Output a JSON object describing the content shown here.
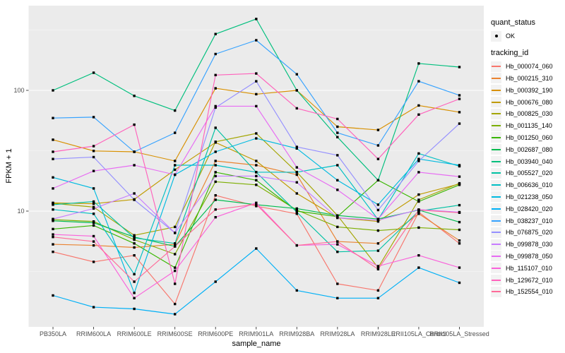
{
  "chart_data": {
    "type": "line",
    "xlabel": "sample_name",
    "ylabel": "FPKM + 1",
    "y_scale": "log10",
    "y_ticks": [
      10,
      100
    ],
    "y_minor_gridlines": [
      3.162,
      31.62,
      316.2
    ],
    "ylim": [
      1.1,
      500
    ],
    "grid": true,
    "legend_position": "right",
    "legend": {
      "quant_status_title": "quant_status",
      "ok_label": "OK",
      "tracking_id_title": "tracking_id"
    },
    "categories": [
      "PB350LA",
      "RRIM600LA",
      "RRIM600LE",
      "RRIM600SE",
      "RRIM600PE",
      "RRIM901LA",
      "RRIM928BA",
      "RRIM928LA",
      "RRIM928LE",
      "RRII105LA_Control",
      "RRII105LA_Stressed"
    ],
    "series": [
      {
        "name": "Hb_000074_060",
        "color": "#F8766D",
        "values": [
          4.6,
          3.8,
          4.3,
          1.7,
          13.5,
          11.0,
          9.5,
          2.5,
          2.2,
          9.8,
          5.4
        ]
      },
      {
        "name": "Hb_000215_310",
        "color": "#EA8331",
        "values": [
          5.3,
          5.2,
          5.0,
          5.3,
          26,
          24,
          20,
          5.6,
          5.4,
          9.5,
          5.7
        ]
      },
      {
        "name": "Hb_000392_190",
        "color": "#D89000",
        "values": [
          39,
          31.5,
          31,
          26,
          104,
          93,
          100,
          50,
          47,
          75,
          66
        ]
      },
      {
        "name": "Hb_000676_080",
        "color": "#C09B00",
        "values": [
          11.7,
          11.5,
          12.5,
          22,
          37,
          26,
          14,
          8.8,
          8.2,
          13.7,
          16.8
        ]
      },
      {
        "name": "Hb_000825_030",
        "color": "#A3A500",
        "values": [
          11.6,
          10.8,
          6.3,
          7.4,
          37.5,
          44,
          21,
          9.2,
          3.4,
          12.4,
          17
        ]
      },
      {
        "name": "Hb_001135_140",
        "color": "#7CAE00",
        "values": [
          8.5,
          8.2,
          5.8,
          4.4,
          17.5,
          16.5,
          10.2,
          7.4,
          6.9,
          7.3,
          7.0
        ]
      },
      {
        "name": "Hb_001250_060",
        "color": "#39B600",
        "values": [
          7.1,
          7.6,
          5.4,
          3.4,
          21,
          18,
          10,
          9.0,
          18,
          12,
          16.5
        ]
      },
      {
        "name": "Hb_002687_080",
        "color": "#00BB4E",
        "values": [
          8.3,
          8.0,
          6.1,
          5.1,
          12.4,
          11.3,
          10.5,
          9.2,
          8.6,
          10.2,
          8.1
        ]
      },
      {
        "name": "Hb_003940_040",
        "color": "#00BF7D",
        "values": [
          100,
          140,
          90,
          68,
          293,
          390,
          100,
          41,
          18,
          167,
          156
        ]
      },
      {
        "name": "Hb_005527_020",
        "color": "#00C1A3",
        "values": [
          11.3,
          12,
          6.0,
          5.4,
          49,
          21,
          9.8,
          4.6,
          4.7,
          10,
          11.2
        ]
      },
      {
        "name": "Hb_006636_010",
        "color": "#00BFC4",
        "values": [
          10.3,
          9.5,
          3.0,
          24,
          24,
          21,
          21,
          24,
          8.5,
          30,
          23.5
        ]
      },
      {
        "name": "Hb_021238_050",
        "color": "#00BAE0",
        "values": [
          19,
          15.4,
          2.1,
          20,
          31,
          40,
          33,
          18,
          11.3,
          27,
          24
        ]
      },
      {
        "name": "Hb_028420_020",
        "color": "#00B0F6",
        "values": [
          2.0,
          1.6,
          1.55,
          1.4,
          2.6,
          4.9,
          2.2,
          1.9,
          1.9,
          3.4,
          2.55
        ]
      },
      {
        "name": "Hb_038237_010",
        "color": "#35A2FF",
        "values": [
          59,
          60,
          31,
          44.5,
          200,
          260,
          136,
          44.5,
          35,
          119,
          91
        ]
      },
      {
        "name": "Hb_076875_020",
        "color": "#9590FF",
        "values": [
          27,
          28,
          12.4,
          6.6,
          72,
          119,
          34,
          29,
          10.2,
          26,
          53
        ]
      },
      {
        "name": "Hb_099878_030",
        "color": "#C77CFF",
        "values": [
          8.6,
          10.5,
          14,
          6.6,
          19.5,
          19.5,
          17.3,
          8.8,
          8.4,
          10.3,
          9.8
        ]
      },
      {
        "name": "Hb_099878_050",
        "color": "#E76BF3",
        "values": [
          15.4,
          21.5,
          24,
          20,
          74,
          74,
          23,
          15,
          8.6,
          21,
          19.3
        ]
      },
      {
        "name": "Hb_115107_010",
        "color": "#FA62DB",
        "values": [
          6.4,
          6.2,
          1.9,
          3.2,
          8.9,
          11.7,
          5.2,
          5.3,
          3.5,
          4.3,
          3.4
        ]
      },
      {
        "name": "Hb_129672_010",
        "color": "#FF62BC",
        "values": [
          31,
          34.5,
          52,
          2.5,
          134,
          138,
          71,
          58,
          27,
          63,
          85
        ]
      },
      {
        "name": "Hb_152554_010",
        "color": "#FF6A98",
        "values": [
          6.1,
          5.6,
          2.6,
          5.1,
          10.3,
          11.4,
          5.2,
          5.6,
          3.3,
          10.2,
          9.7
        ]
      }
    ],
    "point_color": "#000000"
  },
  "colors": {
    "panel_bg": "#EBEBEB",
    "grid_major": "#FFFFFF",
    "grid_minor": "#F5F5F5",
    "tick_mark": "#333333",
    "tick_label": "#4D4D4D",
    "axis_title": "#000000",
    "legend_key_bg": "#F2F2F2"
  }
}
